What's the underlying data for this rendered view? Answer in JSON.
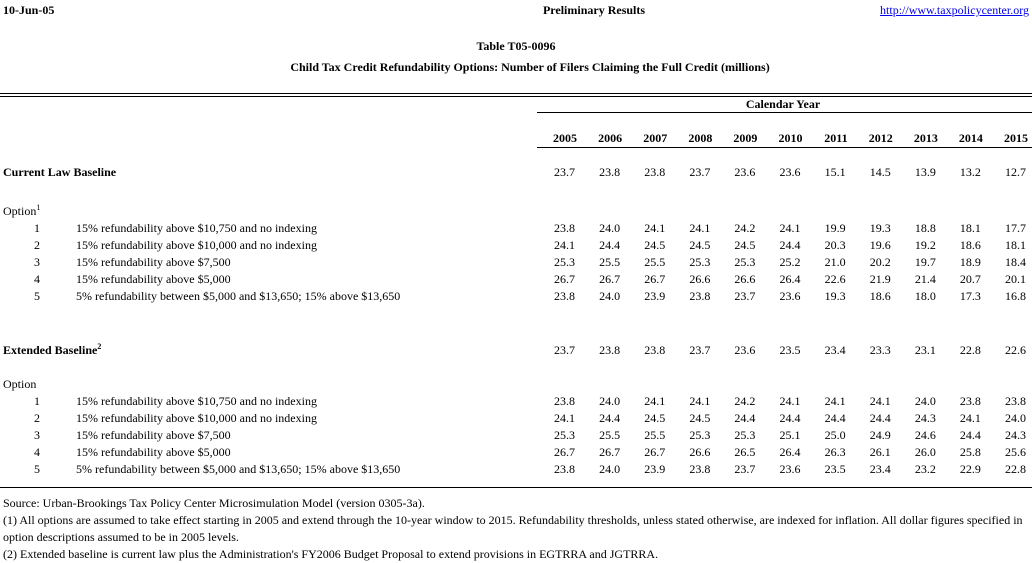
{
  "header": {
    "date": "10-Jun-05",
    "status": "Preliminary Results",
    "url": "http://www.taxpolicycenter.org"
  },
  "title": "Table T05-0096",
  "subtitle": "Child Tax Credit Refundability Options: Number of Filers Claiming the Full Credit (millions)",
  "table": {
    "column_group": "Calendar Year",
    "years": [
      "2005",
      "2006",
      "2007",
      "2008",
      "2009",
      "2010",
      "2011",
      "2012",
      "2013",
      "2014",
      "2015"
    ],
    "sections": [
      {
        "baseline": {
          "label": "Current Law Baseline",
          "values": [
            "23.7",
            "23.8",
            "23.8",
            "23.7",
            "23.6",
            "23.6",
            "15.1",
            "14.5",
            "13.9",
            "13.2",
            "12.7"
          ]
        },
        "option_label": {
          "label": "Option",
          "footnote": "1"
        },
        "options": [
          {
            "number": "1",
            "description": "15% refundability above $10,750 and no indexing",
            "values": [
              "23.8",
              "24.0",
              "24.1",
              "24.1",
              "24.2",
              "24.1",
              "19.9",
              "19.3",
              "18.8",
              "18.1",
              "17.7"
            ]
          },
          {
            "number": "2",
            "description": "15% refundability above $10,000 and no indexing",
            "values": [
              "24.1",
              "24.4",
              "24.5",
              "24.5",
              "24.5",
              "24.4",
              "20.3",
              "19.6",
              "19.2",
              "18.6",
              "18.1"
            ]
          },
          {
            "number": "3",
            "description": "15% refundability above $7,500",
            "values": [
              "25.3",
              "25.5",
              "25.5",
              "25.3",
              "25.3",
              "25.2",
              "21.0",
              "20.2",
              "19.7",
              "18.9",
              "18.4"
            ]
          },
          {
            "number": "4",
            "description": "15% refundability above $5,000",
            "values": [
              "26.7",
              "26.7",
              "26.7",
              "26.6",
              "26.6",
              "26.4",
              "22.6",
              "21.9",
              "21.4",
              "20.7",
              "20.1"
            ]
          },
          {
            "number": "5",
            "description": "5% refundability between $5,000 and $13,650; 15% above $13,650",
            "values": [
              "23.8",
              "24.0",
              "23.9",
              "23.8",
              "23.7",
              "23.6",
              "19.3",
              "18.6",
              "18.0",
              "17.3",
              "16.8"
            ]
          }
        ]
      },
      {
        "baseline": {
          "label": "Extended Baseline",
          "footnote": "2",
          "values": [
            "23.7",
            "23.8",
            "23.8",
            "23.7",
            "23.6",
            "23.5",
            "23.4",
            "23.3",
            "23.1",
            "22.8",
            "22.6"
          ]
        },
        "option_label": {
          "label": "Option"
        },
        "options": [
          {
            "number": "1",
            "description": "15% refundability above $10,750 and no indexing",
            "values": [
              "23.8",
              "24.0",
              "24.1",
              "24.1",
              "24.2",
              "24.1",
              "24.1",
              "24.1",
              "24.0",
              "23.8",
              "23.8"
            ]
          },
          {
            "number": "2",
            "description": "15% refundability above $10,000 and no indexing",
            "values": [
              "24.1",
              "24.4",
              "24.5",
              "24.5",
              "24.4",
              "24.4",
              "24.4",
              "24.4",
              "24.3",
              "24.1",
              "24.0"
            ]
          },
          {
            "number": "3",
            "description": "15% refundability above $7,500",
            "values": [
              "25.3",
              "25.5",
              "25.5",
              "25.3",
              "25.3",
              "25.1",
              "25.0",
              "24.9",
              "24.6",
              "24.4",
              "24.3"
            ]
          },
          {
            "number": "4",
            "description": "15% refundability above $5,000",
            "values": [
              "26.7",
              "26.7",
              "26.7",
              "26.6",
              "26.5",
              "26.4",
              "26.3",
              "26.1",
              "26.0",
              "25.8",
              "25.6"
            ]
          },
          {
            "number": "5",
            "description": "5% refundability between $5,000 and $13,650; 15% above $13,650",
            "values": [
              "23.8",
              "24.0",
              "23.9",
              "23.8",
              "23.7",
              "23.6",
              "23.5",
              "23.4",
              "23.2",
              "22.9",
              "22.8"
            ]
          }
        ]
      }
    ]
  },
  "notes": [
    "Source: Urban-Brookings Tax Policy Center Microsimulation Model (version 0305-3a).",
    "(1) All options are assumed to take effect starting in 2005 and extend through the 10-year window to 2015.  Refundability thresholds, unless stated otherwise, are indexed for inflation.  All dollar figures specified in option descriptions assumed to be in 2005 levels.",
    "(2) Extended baseline is current law plus the Administration's FY2006 Budget Proposal to extend provisions in EGTRRA and JGTRRA."
  ]
}
